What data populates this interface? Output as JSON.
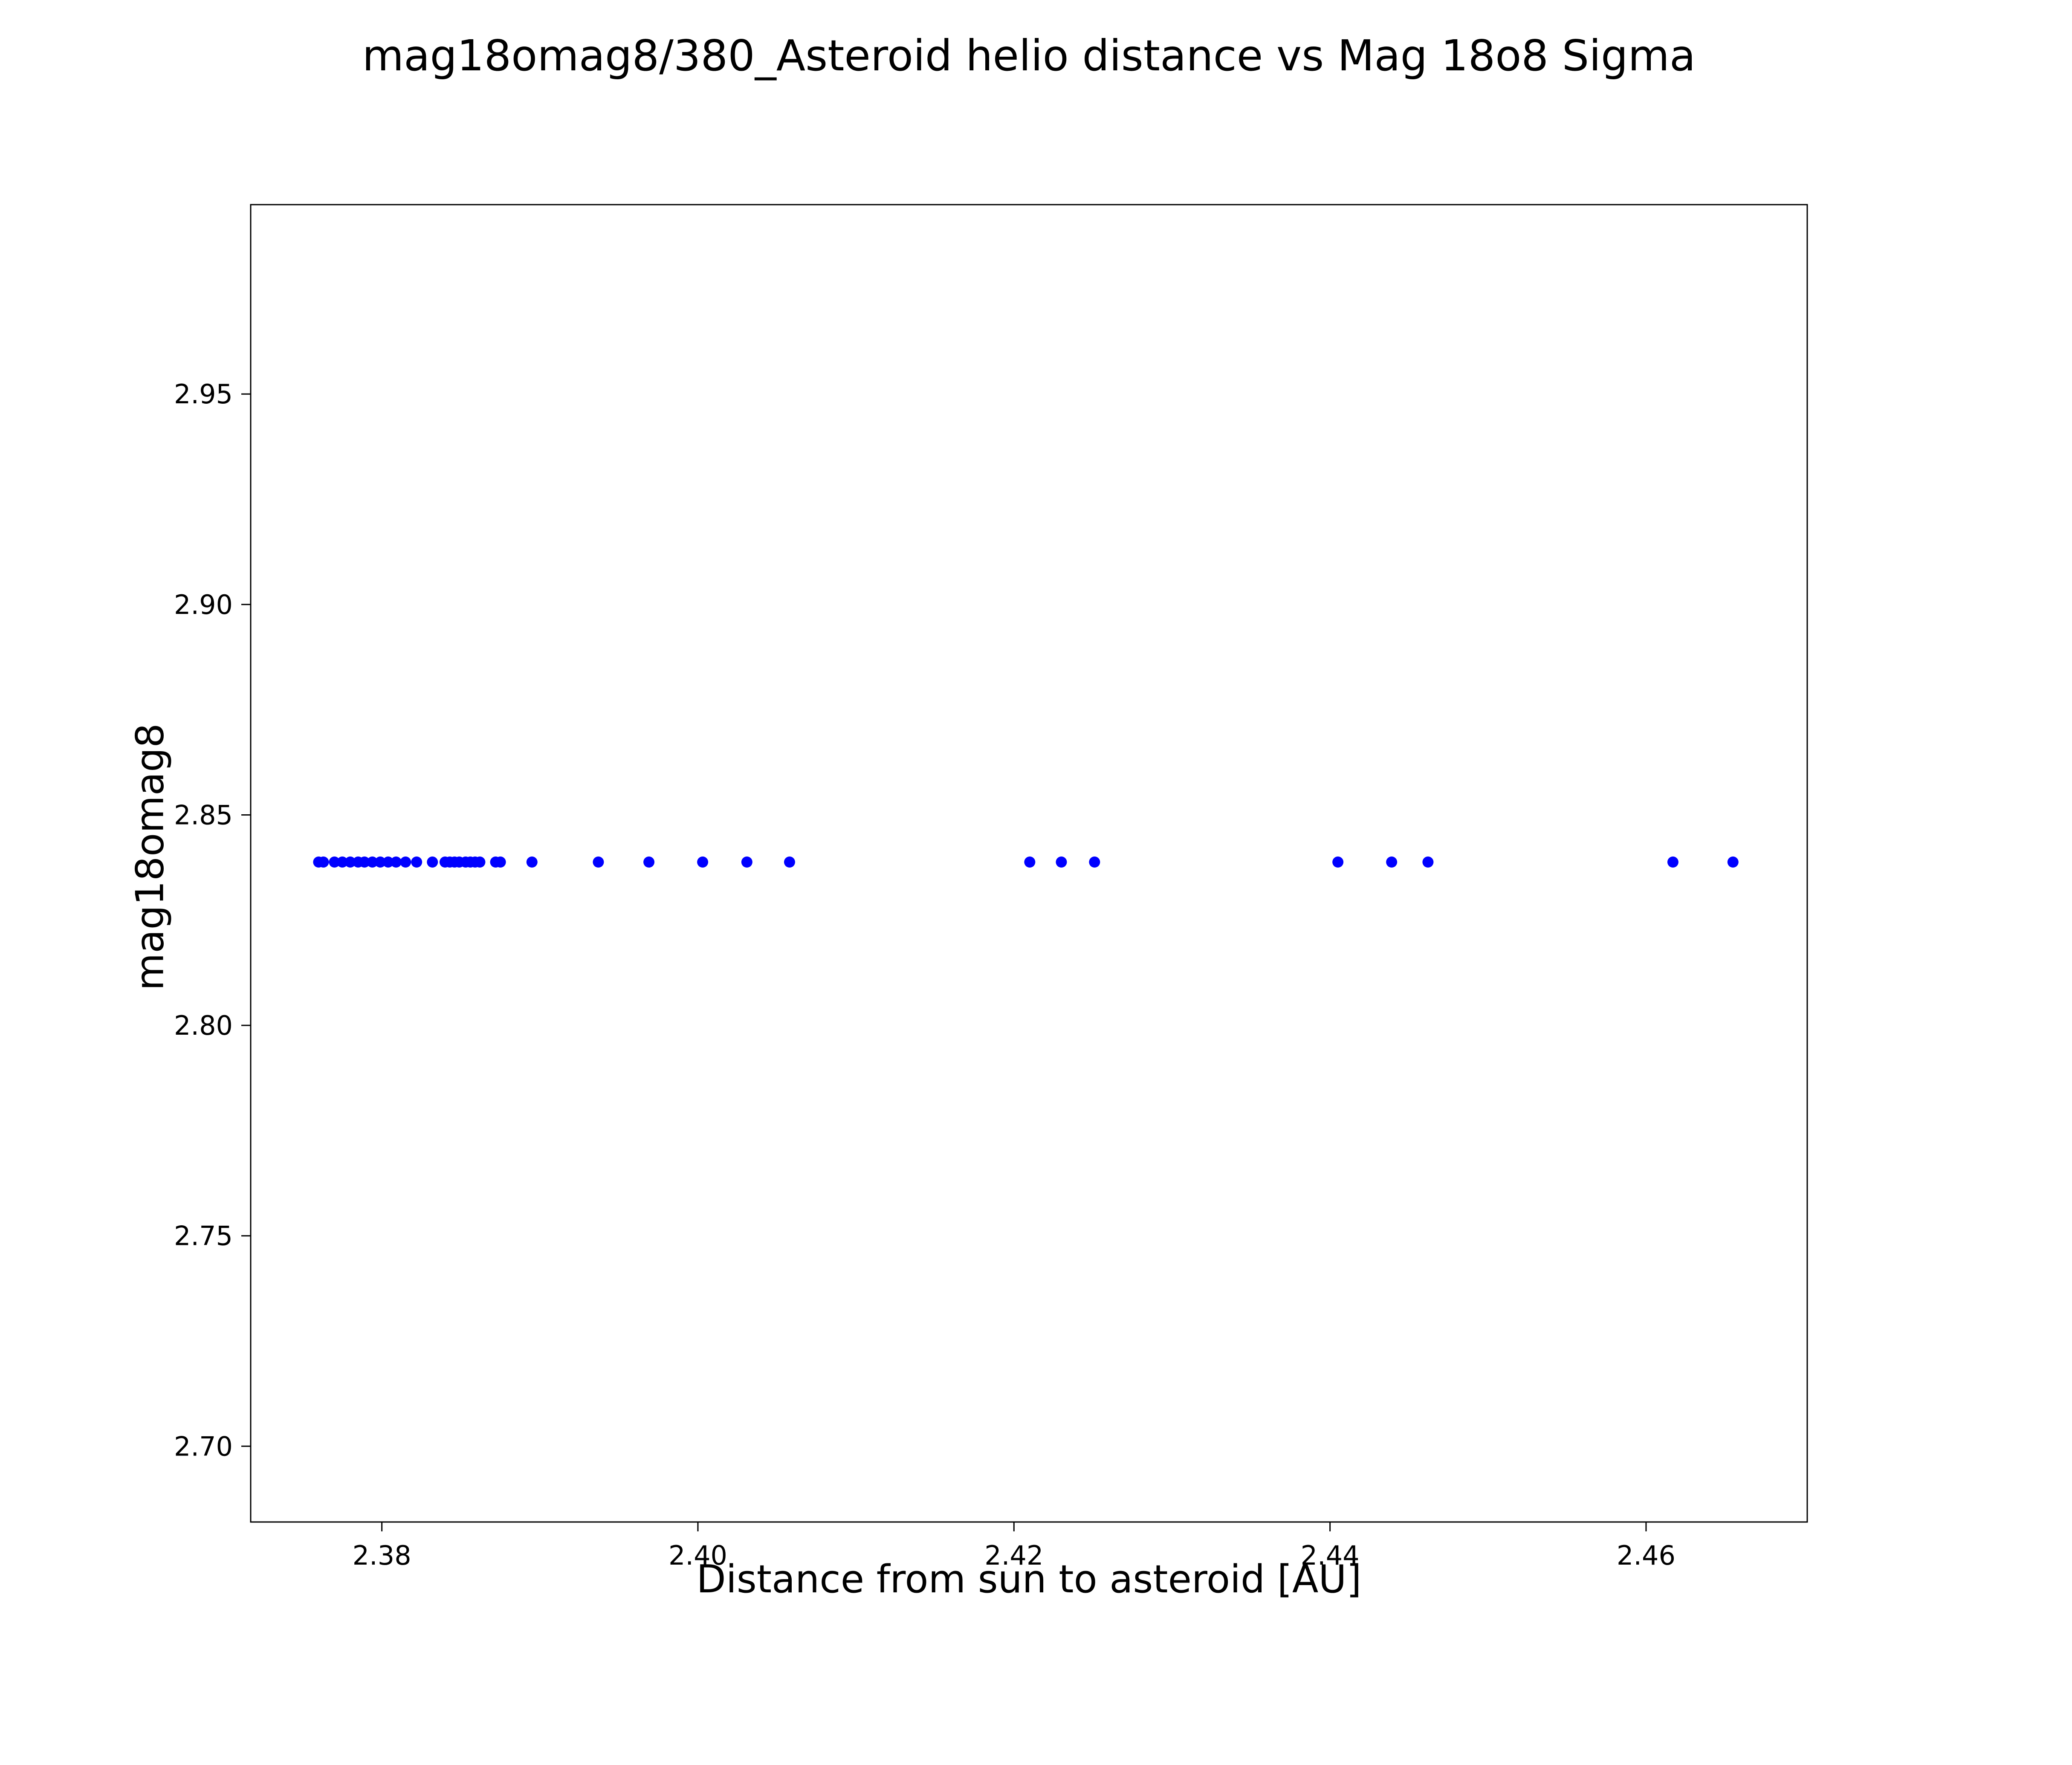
{
  "chart": {
    "title": "mag18omag8/380_Asteroid helio distance vs Mag 18o8 Sigma",
    "xlabel": "Distance from sun to asteroid [AU]",
    "ylabel": "mag18omag8"
  },
  "chart_data": {
    "type": "scatter",
    "title": "mag18omag8/380_Asteroid helio distance vs Mag 18o8 Sigma",
    "xlabel": "Distance from sun to asteroid [AU]",
    "ylabel": "mag18omag8",
    "marker_color": "#0000ff",
    "background_color": "#ffffff",
    "grid": false,
    "legend": false,
    "xlim": [
      2.3717,
      2.4702
    ],
    "ylim": [
      2.682,
      2.995
    ],
    "xticks": [
      2.38,
      2.4,
      2.42,
      2.44,
      2.46
    ],
    "xtick_labels": [
      "2.38",
      "2.40",
      "2.42",
      "2.44",
      "2.46"
    ],
    "yticks": [
      2.7,
      2.75,
      2.8,
      2.85,
      2.9,
      2.95
    ],
    "ytick_labels": [
      "2.70",
      "2.75",
      "2.80",
      "2.85",
      "2.90",
      "2.95"
    ],
    "y_constant": 2.8388,
    "x": [
      2.376,
      2.3763,
      2.377,
      2.3775,
      2.378,
      2.3785,
      2.3789,
      2.3794,
      2.3799,
      2.3804,
      2.3809,
      2.3815,
      2.3822,
      2.3832,
      2.384,
      2.3843,
      2.3846,
      2.3849,
      2.3853,
      2.3856,
      2.3859,
      2.3862,
      2.3872,
      2.3875,
      2.3895,
      2.3937,
      2.3969,
      2.4003,
      2.4031,
      2.4058,
      2.421,
      2.423,
      2.4251,
      2.4405,
      2.4439,
      2.4462,
      2.4617,
      2.4655
    ]
  },
  "plot_geometry_note": "all points share the same y value (y_constant)"
}
